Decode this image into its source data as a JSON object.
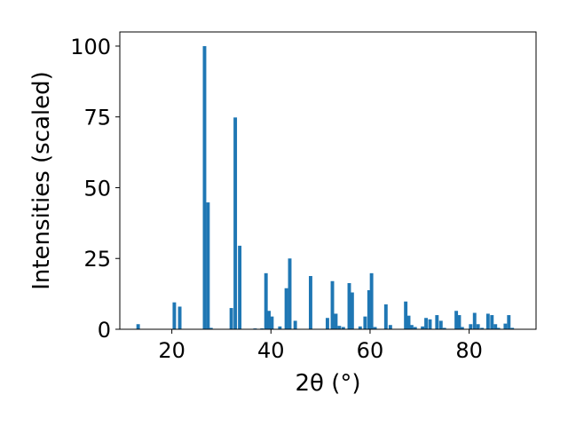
{
  "chart_data": {
    "type": "bar",
    "title": "",
    "xlabel": "2θ (°)",
    "ylabel": "Intensities (scaled)",
    "xlim": [
      9.5,
      93.5
    ],
    "ylim": [
      0,
      105
    ],
    "xticks": [
      20,
      40,
      60,
      80
    ],
    "yticks": [
      0,
      25,
      50,
      75,
      100
    ],
    "xtick_labels": [
      "20",
      "40",
      "60",
      "80"
    ],
    "ytick_labels": [
      "0",
      "25",
      "50",
      "75",
      "100"
    ],
    "grid": false,
    "bar_color": "#1f77b4",
    "bar_width": 0.7,
    "x": [
      13.2,
      20.5,
      21.6,
      26.6,
      27.3,
      27.9,
      32.0,
      32.8,
      33.7,
      36.8,
      38.2,
      39.0,
      39.6,
      40.2,
      41.8,
      43.1,
      43.8,
      44.9,
      48.0,
      51.4,
      52.4,
      53.1,
      53.8,
      54.6,
      55.8,
      56.4,
      58.0,
      59.0,
      59.8,
      60.3,
      61.0,
      63.2,
      64.1,
      67.2,
      67.8,
      68.4,
      69.1,
      70.6,
      71.3,
      72.1,
      73.5,
      74.3,
      75.0,
      77.4,
      78.0,
      78.6,
      80.3,
      81.1,
      81.8,
      82.6,
      83.8,
      84.6,
      85.3,
      85.9,
      87.3,
      88.0,
      88.7
    ],
    "values": [
      1.8,
      9.5,
      8.0,
      100.0,
      44.8,
      0.5,
      7.5,
      74.8,
      29.5,
      0.3,
      0.3,
      19.8,
      6.5,
      4.5,
      1.0,
      14.5,
      25.0,
      3.0,
      18.8,
      4.0,
      17.0,
      5.5,
      1.2,
      0.8,
      16.3,
      13.0,
      1.0,
      4.5,
      13.8,
      19.8,
      0.8,
      8.8,
      1.5,
      9.8,
      4.8,
      1.5,
      0.8,
      1.0,
      4.0,
      3.5,
      5.0,
      3.0,
      0.5,
      6.5,
      5.0,
      0.8,
      1.8,
      5.8,
      1.8,
      0.5,
      5.5,
      5.0,
      1.8,
      0.5,
      2.0,
      5.0,
      0.5
    ]
  }
}
